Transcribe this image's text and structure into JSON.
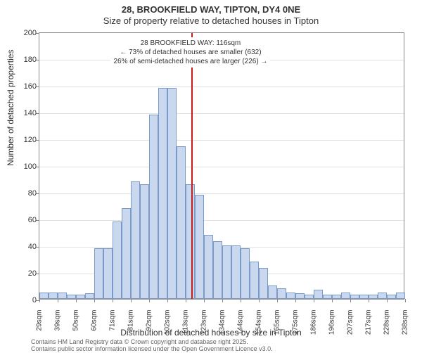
{
  "title": "28, BROOKFIELD WAY, TIPTON, DY4 0NE",
  "subtitle": "Size of property relative to detached houses in Tipton",
  "chart": {
    "type": "histogram",
    "ylabel": "Number of detached properties",
    "xlabel": "Distribution of detached houses by size in Tipton",
    "ylim": [
      0,
      200
    ],
    "ytick_step": 20,
    "background_color": "#ffffff",
    "grid_color": "#e0e0e0",
    "bar_fill": "#c9d8ee",
    "bar_border": "#7a9bc7",
    "marker_color": "#c71c1c",
    "marker_position": 116,
    "x_start": 29,
    "x_step": 5.25,
    "x_labels": [
      "29sqm",
      "39sqm",
      "50sqm",
      "60sqm",
      "71sqm",
      "81sqm",
      "92sqm",
      "102sqm",
      "113sqm",
      "123sqm",
      "134sqm",
      "144sqm",
      "154sqm",
      "165sqm",
      "175sqm",
      "186sqm",
      "196sqm",
      "207sqm",
      "217sqm",
      "228sqm",
      "238sqm"
    ],
    "values": [
      5,
      5,
      5,
      3,
      3,
      4,
      38,
      38,
      58,
      68,
      88,
      86,
      138,
      158,
      158,
      114,
      86,
      78,
      48,
      43,
      40,
      40,
      38,
      28,
      23,
      10,
      8,
      5,
      4,
      3,
      7,
      3,
      3,
      5,
      3,
      3,
      3,
      5,
      3,
      5
    ],
    "annotation": {
      "line1": "28 BROOKFIELD WAY: 116sqm",
      "line2": "← 73% of detached houses are smaller (632)",
      "line3": "26% of semi-detached houses are larger (226) →"
    }
  },
  "footer": {
    "line1": "Contains HM Land Registry data © Crown copyright and database right 2025.",
    "line2": "Contains public sector information licensed under the Open Government Licence v3.0."
  }
}
